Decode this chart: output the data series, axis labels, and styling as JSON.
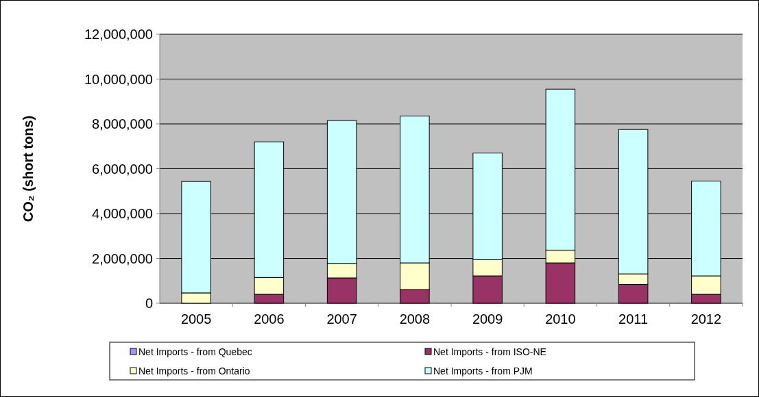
{
  "chart_data": {
    "type": "bar",
    "stacked": true,
    "ylabel": "CO₂ (short tons)",
    "categories": [
      "2005",
      "2006",
      "2007",
      "2008",
      "2009",
      "2010",
      "2011",
      "2012"
    ],
    "series": [
      {
        "name": "Net Imports - from Quebec",
        "color": "#9999ff",
        "values": [
          0,
          0,
          0,
          0,
          0,
          0,
          0,
          0
        ]
      },
      {
        "name": "Net Imports - from ISO-NE",
        "color": "#993366",
        "values": [
          0,
          400000,
          1130000,
          610000,
          1220000,
          1800000,
          840000,
          400000
        ]
      },
      {
        "name": "Net Imports - from Ontario",
        "color": "#ffffcc",
        "values": [
          460000,
          750000,
          640000,
          1190000,
          720000,
          570000,
          470000,
          820000
        ]
      },
      {
        "name": "Net Imports - from PJM",
        "color": "#ccffff",
        "values": [
          4970000,
          6050000,
          6380000,
          6550000,
          4760000,
          7180000,
          6440000,
          4230000
        ]
      }
    ],
    "ylim": [
      0,
      12000000
    ],
    "yticks": [
      {
        "value": 0,
        "label": "0"
      },
      {
        "value": 2000000,
        "label": "2,000,000"
      },
      {
        "value": 4000000,
        "label": "4,000,000"
      },
      {
        "value": 6000000,
        "label": "6,000,000"
      },
      {
        "value": 8000000,
        "label": "8,000,000"
      },
      {
        "value": 10000000,
        "label": "10,000,000"
      },
      {
        "value": 12000000,
        "label": "12,000,000"
      }
    ],
    "grid": "y",
    "legend": "bottom"
  }
}
